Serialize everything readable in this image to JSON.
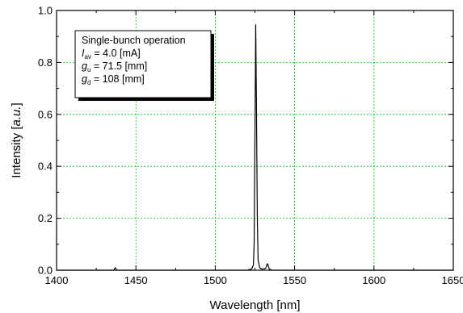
{
  "chart_data": {
    "type": "line",
    "xlabel": "Wavelength [nm]",
    "ylabel_prefix": "Intensity [",
    "ylabel_italic": "a.u.",
    "ylabel_suffix": "]",
    "xlim": [
      1400,
      1650
    ],
    "ylim": [
      0.0,
      1.0
    ],
    "x_ticks": [
      "1400",
      "1450",
      "1500",
      "1550",
      "1600",
      "1650"
    ],
    "y_ticks": [
      "0.0",
      "0.2",
      "0.4",
      "0.6",
      "0.8",
      "1.0"
    ],
    "grid": true,
    "grid_color": "#00cc00",
    "line_color": "#000000",
    "series": [
      {
        "x": [
          1400,
          1420,
          1436,
          1437,
          1438,
          1450,
          1480,
          1500,
          1515,
          1520,
          1523,
          1524,
          1524.5,
          1525,
          1525.5,
          1526,
          1526.5,
          1527,
          1528,
          1529,
          1530,
          1531,
          1532,
          1532.5,
          1533,
          1533.5,
          1534,
          1536,
          1540,
          1560,
          1600,
          1650
        ],
        "y": [
          0.0,
          0.0,
          0.0,
          0.01,
          0.0,
          0.0,
          0.0,
          0.0,
          0.0,
          0.0,
          0.005,
          0.02,
          0.1,
          0.5,
          0.945,
          0.6,
          0.2,
          0.04,
          0.01,
          0.005,
          0.005,
          0.005,
          0.01,
          0.022,
          0.025,
          0.015,
          0.005,
          0.0,
          0.0,
          0.0,
          0.0,
          0.0
        ]
      }
    ],
    "legend": {
      "position": "top-left",
      "lines": [
        {
          "main": "Single-bunch operation",
          "sub": "",
          "value": ""
        },
        {
          "main": "I",
          "sub": "av",
          "value": " = 4.0 [mA]"
        },
        {
          "main": "g",
          "sub": "u",
          "value": " = 71.5 [mm]"
        },
        {
          "main": "g",
          "sub": "d",
          "value": " = 108 [mm]"
        }
      ]
    }
  }
}
